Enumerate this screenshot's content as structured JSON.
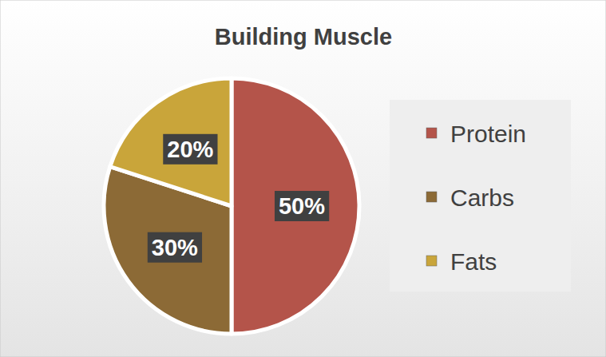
{
  "chart_data": {
    "type": "pie",
    "title": "Building Muscle",
    "categories": [
      "Protein",
      "Carbs",
      "Fats"
    ],
    "values": [
      50,
      30,
      20
    ],
    "value_labels": [
      "50%",
      "30%",
      "20%"
    ],
    "colors": [
      "#b4544a",
      "#8c6a36",
      "#c9a53a"
    ],
    "data_labels": true,
    "legend": "right"
  }
}
